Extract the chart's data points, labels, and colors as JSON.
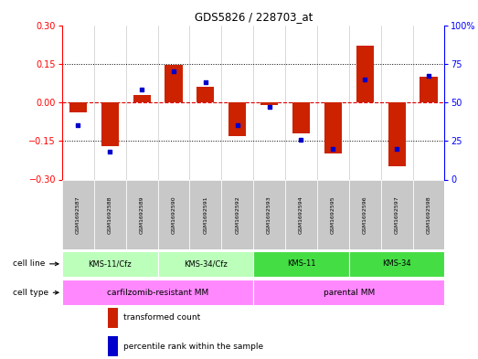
{
  "title": "GDS5826 / 228703_at",
  "samples": [
    "GSM1692587",
    "GSM1692588",
    "GSM1692589",
    "GSM1692590",
    "GSM1692591",
    "GSM1692592",
    "GSM1692593",
    "GSM1692594",
    "GSM1692595",
    "GSM1692596",
    "GSM1692597",
    "GSM1692598"
  ],
  "transformed_count": [
    -0.04,
    -0.17,
    0.03,
    0.145,
    0.06,
    -0.13,
    -0.01,
    -0.12,
    -0.2,
    0.22,
    -0.25,
    0.1
  ],
  "percentile_rank": [
    35,
    18,
    58,
    70,
    63,
    35,
    47,
    26,
    20,
    65,
    20,
    67
  ],
  "ylim_left": [
    -0.3,
    0.3
  ],
  "ylim_right": [
    0,
    100
  ],
  "yticks_left": [
    -0.3,
    -0.15,
    0,
    0.15,
    0.3
  ],
  "yticks_right": [
    0,
    25,
    50,
    75,
    100
  ],
  "bar_color": "#cc2200",
  "dot_color": "#0000cc",
  "cl_groups": [
    {
      "label": "KMS-11/Cfz",
      "start": 0,
      "end": 2,
      "color": "#bbffbb"
    },
    {
      "label": "KMS-34/Cfz",
      "start": 3,
      "end": 5,
      "color": "#bbffbb"
    },
    {
      "label": "KMS-11",
      "start": 6,
      "end": 8,
      "color": "#44dd44"
    },
    {
      "label": "KMS-34",
      "start": 9,
      "end": 11,
      "color": "#44dd44"
    }
  ],
  "ct_groups": [
    {
      "label": "carfilzomib-resistant MM",
      "start": 0,
      "end": 5,
      "color": "#ff88ff"
    },
    {
      "label": "parental MM",
      "start": 6,
      "end": 11,
      "color": "#ff88ff"
    }
  ],
  "cell_line_label": "cell line",
  "cell_type_label": "cell type",
  "legend_items": [
    {
      "label": "transformed count",
      "color": "#cc2200"
    },
    {
      "label": "percentile rank within the sample",
      "color": "#0000cc"
    }
  ],
  "background_color": "#ffffff",
  "label_box_color": "#c8c8c8",
  "hline_color": "#dd0000",
  "dotted_color": "#000000"
}
